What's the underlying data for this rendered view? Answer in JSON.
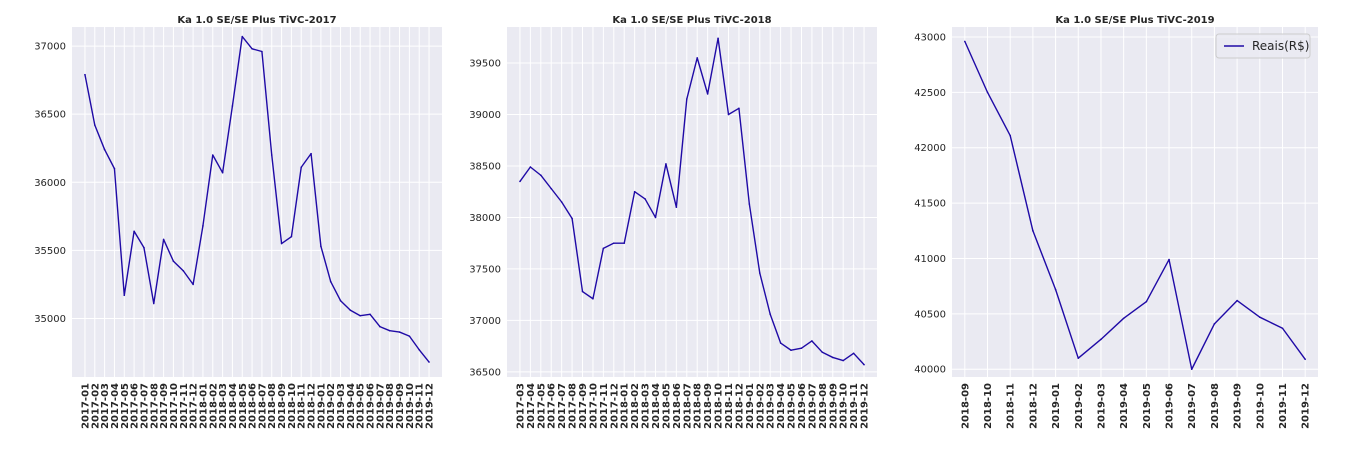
{
  "style": {
    "plot_bg": "#eaeaf2",
    "grid_color": "#ffffff",
    "line_color": "#1f0aa6"
  },
  "chart_data": [
    {
      "type": "line",
      "title": "Ka 1.0 SE/SE Plus TiVC-2017",
      "xlabel": "",
      "ylabel": "",
      "grid": true,
      "x": [
        "2017-01",
        "2017-02",
        "2017-03",
        "2017-04",
        "2017-05",
        "2017-06",
        "2017-07",
        "2017-08",
        "2017-09",
        "2017-10",
        "2017-11",
        "2017-12",
        "2018-01",
        "2018-02",
        "2018-03",
        "2018-04",
        "2018-05",
        "2018-06",
        "2018-07",
        "2018-08",
        "2018-09",
        "2018-10",
        "2018-11",
        "2018-12",
        "2019-01",
        "2019-02",
        "2019-03",
        "2019-04",
        "2019-05",
        "2019-06",
        "2019-07",
        "2019-08",
        "2019-09",
        "2019-10",
        "2019-11",
        "2019-12"
      ],
      "yticks": [
        35000,
        35500,
        36000,
        36500,
        37000
      ],
      "ylim": [
        34570,
        37140
      ],
      "series": [
        {
          "values": [
            36790,
            36420,
            36240,
            36100,
            35170,
            35640,
            35520,
            35110,
            35580,
            35420,
            35350,
            35250,
            35680,
            36200,
            36070,
            36560,
            37070,
            36980,
            36960,
            36200,
            35550,
            35600,
            36110,
            36210,
            35530,
            35270,
            35130,
            35060,
            35020,
            35030,
            34940,
            34910,
            34900,
            34870,
            34770,
            34680
          ]
        }
      ]
    },
    {
      "type": "line",
      "title": "Ka 1.0 SE/SE Plus TiVC-2018",
      "xlabel": "",
      "ylabel": "",
      "grid": true,
      "x": [
        "2017-03",
        "2017-04",
        "2017-05",
        "2017-06",
        "2017-07",
        "2017-08",
        "2017-09",
        "2017-10",
        "2017-11",
        "2017-12",
        "2018-01",
        "2018-02",
        "2018-03",
        "2018-04",
        "2018-05",
        "2018-06",
        "2018-07",
        "2018-08",
        "2018-09",
        "2018-10",
        "2018-11",
        "2018-12",
        "2019-01",
        "2019-02",
        "2019-03",
        "2019-04",
        "2019-05",
        "2019-06",
        "2019-07",
        "2019-08",
        "2019-09",
        "2019-10",
        "2019-11",
        "2019-12"
      ],
      "yticks": [
        36500,
        37000,
        37500,
        38000,
        38500,
        39000,
        39500
      ],
      "ylim": [
        36450,
        39850
      ],
      "series": [
        {
          "values": [
            38350,
            38490,
            38410,
            38280,
            38150,
            37990,
            37280,
            37210,
            37700,
            37750,
            37750,
            38250,
            38180,
            38000,
            38520,
            38100,
            39150,
            39550,
            39200,
            39740,
            39000,
            39060,
            38130,
            37460,
            37060,
            36780,
            36710,
            36730,
            36800,
            36690,
            36640,
            36610,
            36680,
            36570
          ]
        }
      ]
    },
    {
      "type": "line",
      "title": "Ka 1.0 SE/SE Plus TiVC-2019",
      "xlabel": "",
      "ylabel": "",
      "grid": true,
      "legend_position": "top-right",
      "x": [
        "2018-09",
        "2018-10",
        "2018-11",
        "2018-12",
        "2019-01",
        "2019-02",
        "2019-03",
        "2019-04",
        "2019-05",
        "2019-06",
        "2019-07",
        "2019-08",
        "2019-09",
        "2019-10",
        "2019-11",
        "2019-12"
      ],
      "yticks": [
        40000,
        40500,
        41000,
        41500,
        42000,
        42500,
        43000
      ],
      "ylim": [
        39930,
        43090
      ],
      "series": [
        {
          "name": "Reais(R$)",
          "values": [
            42960,
            42500,
            42110,
            41250,
            40720,
            40100,
            40270,
            40460,
            40610,
            40990,
            40000,
            40410,
            40620,
            40470,
            40370,
            40090
          ]
        }
      ]
    }
  ]
}
